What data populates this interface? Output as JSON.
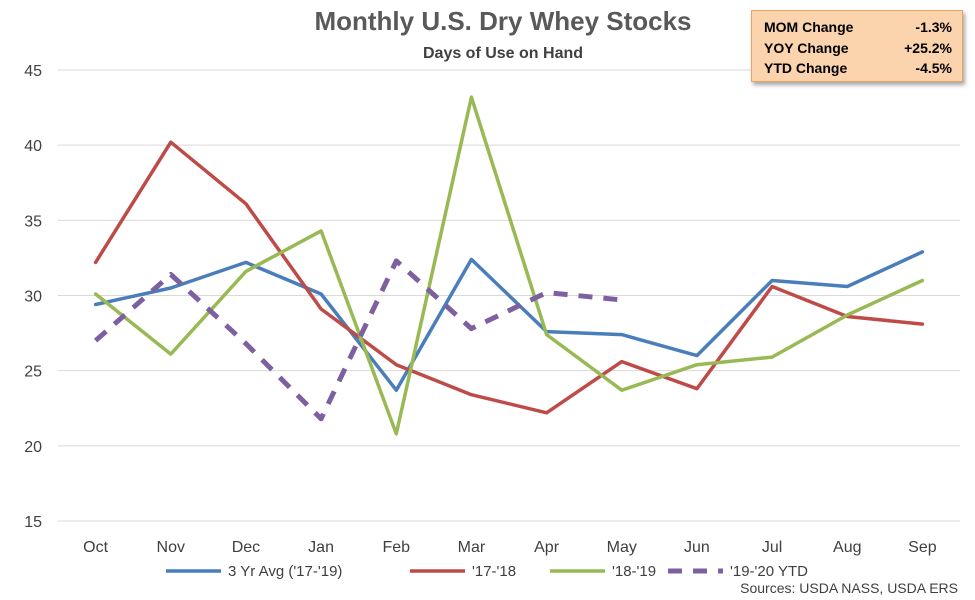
{
  "chart_data": {
    "type": "line",
    "title": "Monthly U.S. Dry Whey Stocks",
    "subtitle": "Days of Use on Hand",
    "categories": [
      "Oct",
      "Nov",
      "Dec",
      "Jan",
      "Feb",
      "Mar",
      "Apr",
      "May",
      "Jun",
      "Jul",
      "Aug",
      "Sep"
    ],
    "ylim": [
      15,
      45
    ],
    "yticks": [
      15,
      20,
      25,
      30,
      35,
      40,
      45
    ],
    "grid": true,
    "legend_position": "bottom",
    "series": [
      {
        "name": "3 Yr Avg ('17-'19)",
        "color": "#4a7ebb",
        "dash": false,
        "values": [
          29.4,
          30.5,
          32.2,
          30.1,
          23.7,
          32.4,
          27.6,
          27.4,
          26.0,
          31.0,
          30.6,
          32.9
        ]
      },
      {
        "name": "'17-'18",
        "color": "#be4b48",
        "dash": false,
        "values": [
          32.2,
          40.2,
          36.1,
          29.1,
          25.4,
          23.4,
          22.2,
          25.6,
          23.8,
          30.6,
          28.6,
          28.1
        ]
      },
      {
        "name": "'18-'19",
        "color": "#98b954",
        "dash": false,
        "values": [
          30.1,
          26.1,
          31.6,
          34.3,
          20.8,
          43.2,
          27.4,
          23.7,
          25.4,
          25.9,
          28.7,
          31.0
        ]
      },
      {
        "name": "'19-'20 YTD",
        "color": "#7d60a0",
        "dash": true,
        "values": [
          27.0,
          31.4,
          26.8,
          21.8,
          32.3,
          27.8,
          30.2,
          29.7,
          null,
          null,
          null,
          null
        ]
      }
    ],
    "stats": [
      {
        "label": "MOM Change",
        "value": "-1.3%"
      },
      {
        "label": "YOY Change",
        "value": "+25.2%"
      },
      {
        "label": "YTD Change",
        "value": "-4.5%"
      }
    ],
    "source": "Sources: USDA NASS, USDA ERS"
  }
}
